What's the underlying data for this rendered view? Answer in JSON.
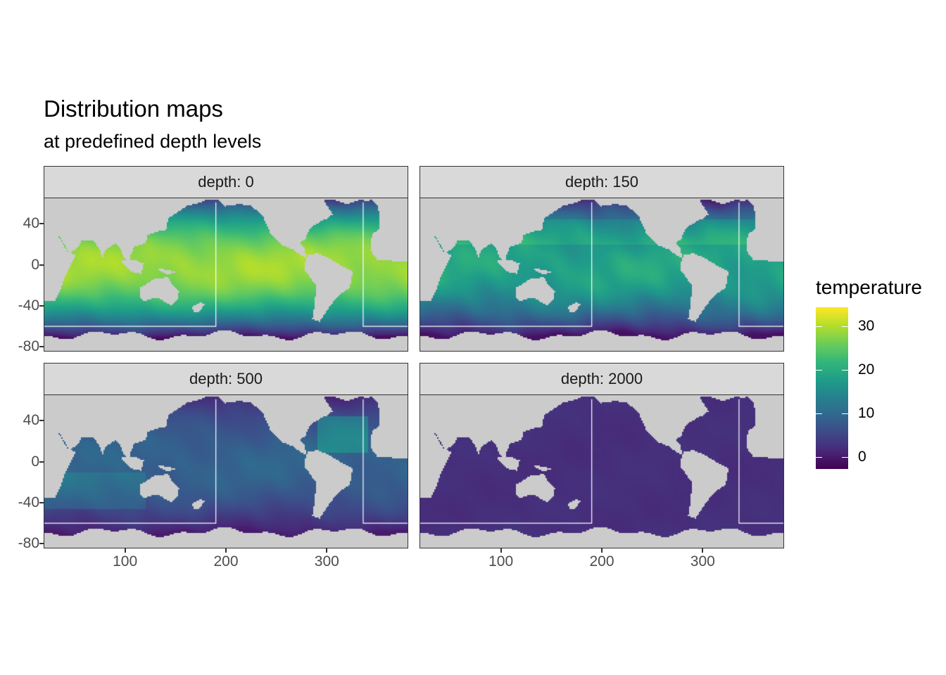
{
  "title": "Distribution maps",
  "subtitle": "at predefined depth levels",
  "chart_data": {
    "type": "heatmap",
    "title": "Distribution maps",
    "subtitle": "at predefined depth levels",
    "xlabel": "",
    "ylabel": "",
    "xlim": [
      20,
      380
    ],
    "ylim": [
      -84,
      65
    ],
    "x_ticks": [
      "100",
      "200",
      "300"
    ],
    "y_ticks": [
      "40",
      "0",
      "-40",
      "-80"
    ],
    "facets": [
      {
        "label": "depth: 0",
        "depth": 0
      },
      {
        "label": "depth: 150",
        "depth": 150
      },
      {
        "label": "depth: 500",
        "depth": 500
      },
      {
        "label": "depth: 2000",
        "depth": 2000
      }
    ],
    "fill": {
      "name": "temperature",
      "palette": "viridis",
      "limits": [
        -2.7,
        34.4
      ],
      "ticks": [
        "30",
        "20",
        "10",
        "0"
      ]
    },
    "land_color": "#cbcbcb",
    "region_outline_color": "#ffffff",
    "region_outline": {
      "lon": [
        190,
        336
      ],
      "lat": [
        -60,
        61
      ]
    },
    "grid": false,
    "legend_position": "right"
  }
}
